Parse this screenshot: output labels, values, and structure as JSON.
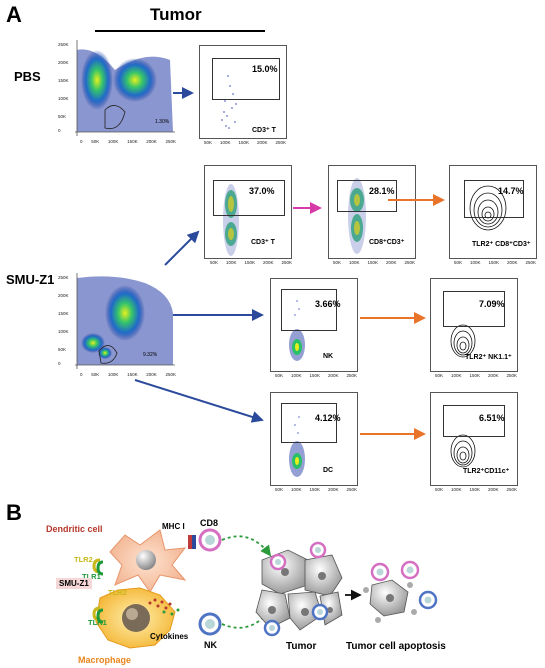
{
  "panel_a": {
    "letter": "A",
    "tumor_header": "Tumor",
    "rows": {
      "pbs": "PBS",
      "smu": "SMU-Z1"
    },
    "dot_gates": {
      "pbs": "1.30%",
      "smu": "9.32%"
    },
    "x_ticks": [
      "50K",
      "100K",
      "150K",
      "200K",
      "250K"
    ],
    "x_ticks_overview": [
      "0",
      "50K",
      "100K",
      "150K",
      "200K",
      "250K"
    ],
    "y_ticks_overview": [
      "250K",
      "200K",
      "150K",
      "100K",
      "50K",
      "0"
    ],
    "plots": {
      "pbs_cd3": {
        "pct": "15.0%",
        "label": "CD3⁺ T"
      },
      "smu_cd3": {
        "pct": "37.0%",
        "label": "CD3⁺ T"
      },
      "smu_cd8": {
        "pct": "28.1%",
        "label": "CD8⁺CD3⁺"
      },
      "smu_tlr2_cd8": {
        "pct": "14.7%",
        "label": "TLR2⁺ CD8⁺CD3⁺"
      },
      "smu_nk": {
        "pct": "3.66%",
        "label": "NK"
      },
      "smu_tlr2_nk": {
        "pct": "7.09%",
        "label": "TLR2⁺ NK1.1⁺"
      },
      "smu_dc": {
        "pct": "4.12%",
        "label": "DC"
      },
      "smu_tlr2_dc": {
        "pct": "6.51%",
        "label": "TLR2⁺CD11c⁺"
      }
    }
  },
  "panel_b": {
    "letter": "B",
    "dendritic_cell": "Dendritic cell",
    "macrophage": "Macrophage",
    "tlr2": "TLR2",
    "tlr1": "TLR1",
    "smu_z1": "SMU-Z1",
    "mhc": "MHC I",
    "cd8": "CD8",
    "nk": "NK",
    "cytokines": "Cytokines",
    "tumor": "Tumor",
    "apoptosis": "Tumor cell apoptosis"
  },
  "colors": {
    "blue_arrow": "#2c4a9c",
    "magenta_arrow": "#d63aa8",
    "orange_arrow": "#e8742a",
    "dc_red": "#b5372b",
    "mac_orange": "#e8861c",
    "tlr_green": "#1f9a3a",
    "tlr_yellow": "#c9b81a"
  }
}
